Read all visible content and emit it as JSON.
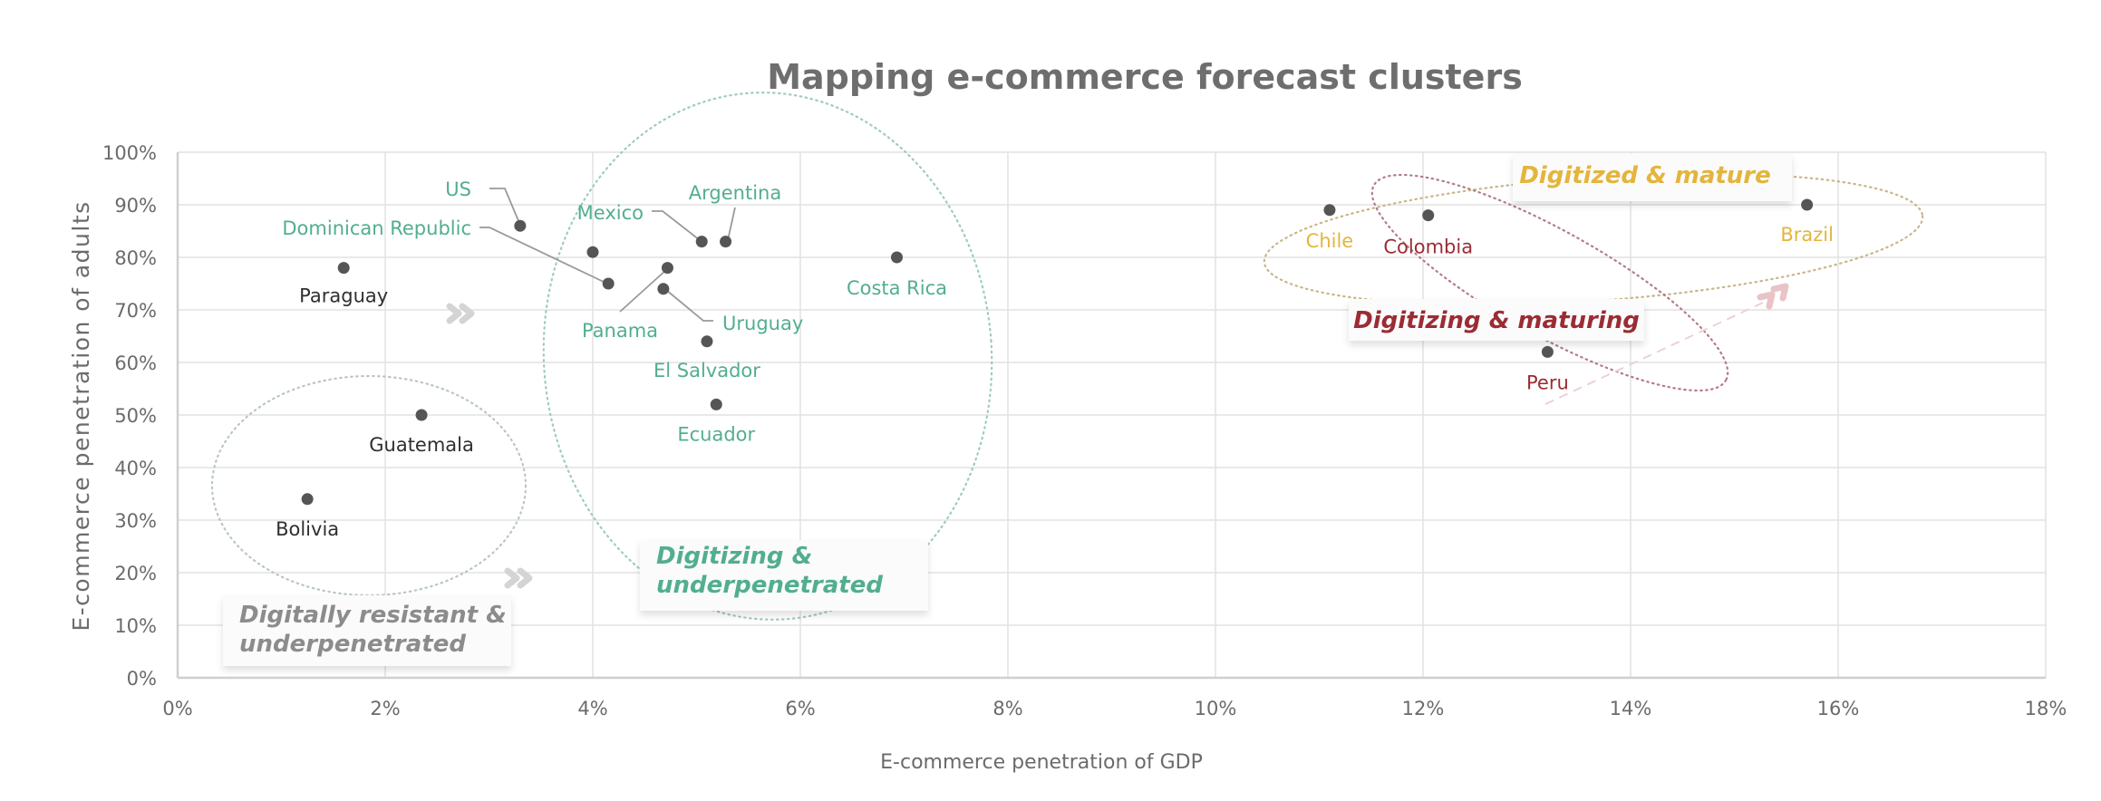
{
  "chart_data": {
    "type": "scatter",
    "title": "Mapping e-commerce forecast clusters",
    "xlabel": "E-commerce penetration of GDP",
    "ylabel": "E-commerce penetration of adults",
    "xlim": [
      0,
      18
    ],
    "ylim": [
      0,
      100
    ],
    "x_unit": "%",
    "y_unit": "%",
    "grid": true,
    "x_ticks": [
      "0%",
      "2%",
      "4%",
      "6%",
      "8%",
      "10%",
      "12%",
      "14%",
      "16%",
      "18%"
    ],
    "x_tick_values": [
      0,
      2,
      4,
      6,
      8,
      10,
      12,
      14,
      16,
      18
    ],
    "y_ticks": [
      "0%",
      "10%",
      "20%",
      "30%",
      "40%",
      "50%",
      "60%",
      "70%",
      "80%",
      "90%",
      "100%"
    ],
    "y_tick_values": [
      0,
      10,
      20,
      30,
      40,
      50,
      60,
      70,
      80,
      90,
      100
    ],
    "colors": {
      "resistant": "#2f2f2f",
      "underpenetrated": "#52ae8e",
      "maturing": "#9b2c34",
      "mature": "#e4b53d",
      "point": "#555555"
    },
    "points": [
      {
        "label": "Paraguay",
        "x": 1.6,
        "y": 78,
        "cluster": "resistant"
      },
      {
        "label": "Guatemala",
        "x": 2.35,
        "y": 50,
        "cluster": "resistant"
      },
      {
        "label": "Bolivia",
        "x": 1.25,
        "y": 34,
        "cluster": "resistant"
      },
      {
        "label": "US",
        "x": 3.3,
        "y": 86,
        "cluster": "underpenetrated"
      },
      {
        "label": "",
        "x": 4.0,
        "y": 81,
        "cluster": "underpenetrated"
      },
      {
        "label": "Dominican Republic",
        "x": 4.15,
        "y": 75,
        "cluster": "underpenetrated"
      },
      {
        "label": "Panama",
        "x": 4.72,
        "y": 78,
        "cluster": "underpenetrated"
      },
      {
        "label": "Uruguay",
        "x": 4.68,
        "y": 74,
        "cluster": "underpenetrated"
      },
      {
        "label": "Mexico",
        "x": 5.05,
        "y": 83,
        "cluster": "underpenetrated"
      },
      {
        "label": "Argentina",
        "x": 5.28,
        "y": 83,
        "cluster": "underpenetrated"
      },
      {
        "label": "El Salvador",
        "x": 5.1,
        "y": 64,
        "cluster": "underpenetrated"
      },
      {
        "label": "Ecuador",
        "x": 5.19,
        "y": 52,
        "cluster": "underpenetrated"
      },
      {
        "label": "Costa Rica",
        "x": 6.93,
        "y": 80,
        "cluster": "underpenetrated"
      },
      {
        "label": "Chile",
        "x": 11.1,
        "y": 89,
        "cluster": "mature"
      },
      {
        "label": "Colombia",
        "x": 12.05,
        "y": 88,
        "cluster": "maturing"
      },
      {
        "label": "Brazil",
        "x": 15.7,
        "y": 90,
        "cluster": "mature"
      },
      {
        "label": "Peru",
        "x": 13.2,
        "y": 62,
        "cluster": "maturing"
      }
    ],
    "annotations": {
      "clusters": [
        {
          "id": "resistant",
          "line1": "Digitally resistant &",
          "line2": "underpenetrated",
          "color": "#8c8c8c"
        },
        {
          "id": "underpenetrated",
          "line1": "Digitizing &",
          "line2": "underpenetrated",
          "color": "#52ae8e"
        },
        {
          "id": "maturing",
          "line1": "Digitizing & maturing",
          "line2": "",
          "color": "#9b2c34"
        },
        {
          "id": "mature",
          "line1": "Digitized & mature",
          "line2": "",
          "color": "#e4b53d"
        }
      ]
    }
  }
}
